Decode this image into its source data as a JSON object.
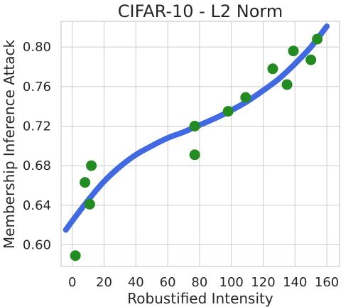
{
  "chart_data": {
    "type": "scatter",
    "title": "CIFAR-10 - L2 Norm",
    "xlabel": "Robustified Intensity",
    "ylabel": "Membership Inference Attack",
    "xlim": [
      -7,
      168
    ],
    "ylim": [
      0.578,
      0.826
    ],
    "xticks": [
      0,
      20,
      40,
      60,
      80,
      100,
      120,
      140,
      160
    ],
    "yticks": [
      0.6,
      0.64,
      0.68,
      0.72,
      0.76,
      0.8
    ],
    "xtick_labels": [
      "0",
      "20",
      "40",
      "60",
      "80",
      "100",
      "120",
      "140",
      "160"
    ],
    "ytick_labels": [
      "0.60",
      "0.64",
      "0.68",
      "0.72",
      "0.76",
      "0.80"
    ],
    "grid": true,
    "points": [
      {
        "x": 2,
        "y": 0.589
      },
      {
        "x": 8,
        "y": 0.663
      },
      {
        "x": 11,
        "y": 0.641
      },
      {
        "x": 12,
        "y": 0.68
      },
      {
        "x": 77,
        "y": 0.72
      },
      {
        "x": 77,
        "y": 0.691
      },
      {
        "x": 98,
        "y": 0.735
      },
      {
        "x": 109,
        "y": 0.749
      },
      {
        "x": 126,
        "y": 0.778
      },
      {
        "x": 135,
        "y": 0.762
      },
      {
        "x": 139,
        "y": 0.796
      },
      {
        "x": 150,
        "y": 0.787
      },
      {
        "x": 154,
        "y": 0.808
      }
    ],
    "fit_curve": [
      {
        "x": -4,
        "y": 0.615
      },
      {
        "x": 0,
        "y": 0.624
      },
      {
        "x": 10,
        "y": 0.645
      },
      {
        "x": 20,
        "y": 0.664
      },
      {
        "x": 30,
        "y": 0.679
      },
      {
        "x": 40,
        "y": 0.691
      },
      {
        "x": 50,
        "y": 0.7
      },
      {
        "x": 60,
        "y": 0.708
      },
      {
        "x": 70,
        "y": 0.714
      },
      {
        "x": 80,
        "y": 0.721
      },
      {
        "x": 90,
        "y": 0.728
      },
      {
        "x": 100,
        "y": 0.736
      },
      {
        "x": 110,
        "y": 0.745
      },
      {
        "x": 120,
        "y": 0.756
      },
      {
        "x": 130,
        "y": 0.768
      },
      {
        "x": 140,
        "y": 0.783
      },
      {
        "x": 150,
        "y": 0.8
      },
      {
        "x": 160,
        "y": 0.821
      }
    ],
    "colors": {
      "points": "#228b22",
      "curve": "#4169e1"
    }
  }
}
